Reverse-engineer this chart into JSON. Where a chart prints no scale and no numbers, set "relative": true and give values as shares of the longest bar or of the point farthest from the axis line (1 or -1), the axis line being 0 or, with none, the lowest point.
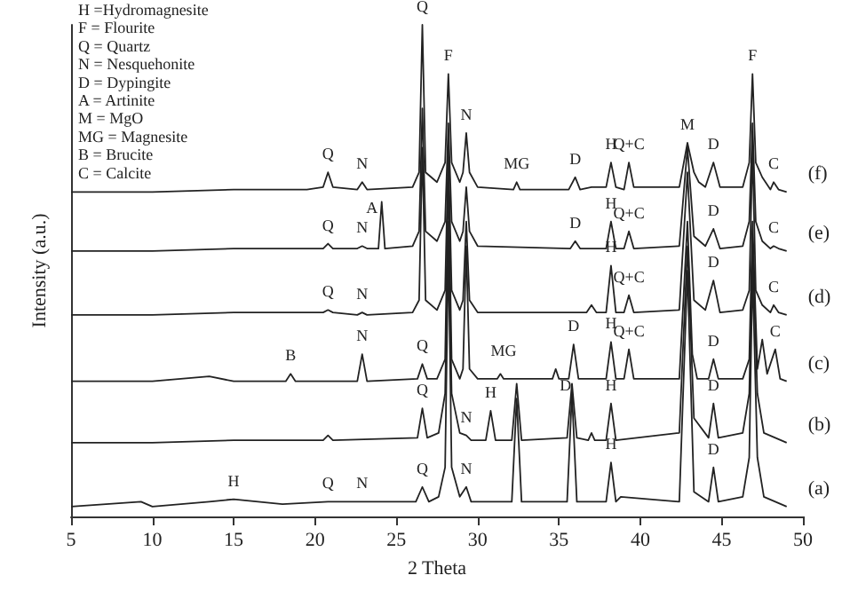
{
  "chart_data": {
    "type": "line",
    "relative": true,
    "xlabel": "2 Theta",
    "ylabel": "Intensity (a.u.)",
    "xlim": [
      5,
      50
    ],
    "xticks": [
      5,
      10,
      15,
      20,
      25,
      30,
      35,
      40,
      45,
      50
    ],
    "tick_labels": "x",
    "grid": false,
    "legend": false,
    "marker": "none",
    "line_style": "solid",
    "series": [
      {
        "name": "(f)",
        "color": "#222222",
        "x": [
          5,
          10,
          15,
          19.5,
          20.5,
          20.8,
          21.1,
          22.6,
          22.9,
          23.2,
          26,
          26.4,
          26.6,
          26.8,
          27.5,
          28,
          28.2,
          28.4,
          28.9,
          29.1,
          29.3,
          29.5,
          30,
          32.2,
          32.4,
          32.6,
          35.6,
          36,
          36.3,
          37,
          37.9,
          38.2,
          38.5,
          39,
          39.3,
          39.6,
          42.4,
          42.9,
          43.3,
          43.6,
          44,
          44.5,
          44.9,
          46.3,
          46.7,
          46.9,
          47.1,
          47.5,
          48,
          48.2,
          48.5,
          49
        ],
        "values": [
          0.66,
          0.66,
          0.665,
          0.665,
          0.67,
          0.7,
          0.67,
          0.665,
          0.68,
          0.665,
          0.67,
          0.7,
          1,
          0.7,
          0.68,
          0.72,
          0.9,
          0.72,
          0.68,
          0.7,
          0.78,
          0.7,
          0.67,
          0.665,
          0.68,
          0.665,
          0.665,
          0.69,
          0.665,
          0.67,
          0.67,
          0.72,
          0.67,
          0.665,
          0.72,
          0.67,
          0.67,
          0.76,
          0.7,
          0.68,
          0.67,
          0.72,
          0.67,
          0.67,
          0.72,
          0.9,
          0.72,
          0.69,
          0.665,
          0.68,
          0.665,
          0.66
        ]
      },
      {
        "name": "(e)",
        "color": "#222222",
        "x": [
          5,
          10,
          15,
          20.5,
          20.8,
          21.1,
          22.6,
          22.9,
          23.2,
          23.9,
          24.1,
          24.3,
          26,
          26.4,
          26.6,
          26.8,
          27.5,
          28,
          28.2,
          28.4,
          28.9,
          29.1,
          29.3,
          29.5,
          30,
          35.7,
          36,
          36.3,
          37.9,
          38.2,
          38.5,
          39,
          39.3,
          39.6,
          42.4,
          42.9,
          43.3,
          44,
          44.5,
          44.9,
          46.3,
          46.7,
          46.9,
          47.1,
          47.5,
          48,
          48.2,
          48.5,
          49
        ],
        "values": [
          0.54,
          0.54,
          0.545,
          0.545,
          0.555,
          0.545,
          0.545,
          0.55,
          0.545,
          0.545,
          0.64,
          0.545,
          0.55,
          0.58,
          0.83,
          0.58,
          0.56,
          0.6,
          0.8,
          0.6,
          0.56,
          0.58,
          0.67,
          0.58,
          0.55,
          0.545,
          0.56,
          0.545,
          0.545,
          0.6,
          0.545,
          0.545,
          0.58,
          0.545,
          0.55,
          0.75,
          0.57,
          0.55,
          0.585,
          0.545,
          0.55,
          0.6,
          0.8,
          0.6,
          0.56,
          0.545,
          0.55,
          0.545,
          0.54
        ]
      },
      {
        "name": "(d)",
        "color": "#222222",
        "x": [
          5,
          10,
          15,
          20.5,
          20.8,
          21.1,
          22.6,
          22.9,
          23.2,
          26,
          26.4,
          26.6,
          26.8,
          27.5,
          28,
          28.2,
          28.4,
          28.9,
          29.1,
          29.3,
          29.5,
          30,
          36.7,
          37,
          37.3,
          37.9,
          38.2,
          38.5,
          39,
          39.3,
          39.6,
          42.4,
          42.9,
          43.3,
          44,
          44.5,
          44.9,
          46.3,
          46.7,
          46.9,
          47.1,
          47.5,
          48,
          48.2,
          48.5,
          49
        ],
        "values": [
          0.41,
          0.41,
          0.415,
          0.415,
          0.42,
          0.415,
          0.41,
          0.415,
          0.41,
          0.415,
          0.44,
          0.75,
          0.44,
          0.42,
          0.46,
          0.75,
          0.46,
          0.42,
          0.44,
          0.6,
          0.44,
          0.415,
          0.415,
          0.43,
          0.415,
          0.415,
          0.51,
          0.415,
          0.415,
          0.45,
          0.415,
          0.42,
          0.7,
          0.44,
          0.42,
          0.48,
          0.415,
          0.42,
          0.46,
          0.75,
          0.46,
          0.43,
          0.415,
          0.43,
          0.415,
          0.41
        ]
      },
      {
        "name": "(c)",
        "color": "#222222",
        "x": [
          5,
          10,
          13.5,
          15,
          18.2,
          18.5,
          18.8,
          22.6,
          22.9,
          23.2,
          26.3,
          26.6,
          26.9,
          27.5,
          28,
          28.2,
          28.4,
          28.9,
          29.1,
          29.3,
          29.5,
          30,
          31.2,
          31.4,
          31.6,
          34.6,
          34.8,
          35,
          35.6,
          35.9,
          36.2,
          37.9,
          38.2,
          38.5,
          39,
          39.3,
          39.6,
          42.4,
          42.9,
          43.2,
          43.5,
          44.2,
          44.5,
          44.8,
          46.3,
          46.7,
          46.9,
          47.2,
          47.5,
          47.8,
          48.3,
          48.6,
          49
        ],
        "values": [
          0.275,
          0.275,
          0.285,
          0.275,
          0.275,
          0.29,
          0.275,
          0.275,
          0.33,
          0.275,
          0.28,
          0.31,
          0.28,
          0.28,
          0.32,
          0.7,
          0.32,
          0.28,
          0.3,
          0.55,
          0.3,
          0.28,
          0.28,
          0.29,
          0.28,
          0.28,
          0.3,
          0.28,
          0.28,
          0.35,
          0.28,
          0.28,
          0.355,
          0.28,
          0.28,
          0.34,
          0.28,
          0.28,
          0.6,
          0.33,
          0.28,
          0.28,
          0.32,
          0.28,
          0.28,
          0.32,
          0.6,
          0.3,
          0.36,
          0.29,
          0.34,
          0.28,
          0.275
        ]
      },
      {
        "name": "(b)",
        "color": "#222222",
        "x": [
          5,
          10,
          15,
          20.5,
          20.8,
          21.1,
          26.3,
          26.6,
          26.9,
          27.6,
          28,
          28.2,
          28.4,
          28.9,
          29.3,
          29.6,
          30.5,
          30.8,
          31.1,
          32.1,
          32.4,
          32.7,
          35.5,
          35.8,
          36.1,
          36.8,
          37,
          37.2,
          37.9,
          38.2,
          38.5,
          42.4,
          42.9,
          43.3,
          44.2,
          44.5,
          44.8,
          46.3,
          46.7,
          46.9,
          47.2,
          47.6,
          49
        ],
        "values": [
          0.15,
          0.15,
          0.155,
          0.155,
          0.165,
          0.155,
          0.16,
          0.22,
          0.16,
          0.17,
          0.25,
          0.6,
          0.25,
          0.17,
          0.165,
          0.155,
          0.155,
          0.215,
          0.155,
          0.155,
          0.27,
          0.155,
          0.16,
          0.27,
          0.16,
          0.155,
          0.17,
          0.155,
          0.155,
          0.23,
          0.155,
          0.17,
          0.55,
          0.2,
          0.16,
          0.23,
          0.16,
          0.17,
          0.25,
          0.55,
          0.25,
          0.17,
          0.15
        ]
      },
      {
        "name": "(a)",
        "color": "#222222",
        "x": [
          5,
          9.3,
          10,
          13.5,
          15,
          18,
          20.8,
          22.9,
          26.2,
          26.6,
          27,
          27.6,
          28,
          28.2,
          28.4,
          28.9,
          29.3,
          29.6,
          30.8,
          32.1,
          32.4,
          32.7,
          35.5,
          35.8,
          36.1,
          37.9,
          38.2,
          38.5,
          38.8,
          42.4,
          42.9,
          43.3,
          44.2,
          44.5,
          44.8,
          46.3,
          46.7,
          46.9,
          47.2,
          47.6,
          49
        ],
        "values": [
          0.02,
          0.03,
          0.02,
          0.03,
          0.035,
          0.025,
          0.03,
          0.03,
          0.03,
          0.06,
          0.03,
          0.04,
          0.1,
          0.55,
          0.1,
          0.04,
          0.06,
          0.03,
          0.03,
          0.03,
          0.24,
          0.03,
          0.03,
          0.25,
          0.03,
          0.03,
          0.11,
          0.03,
          0.04,
          0.03,
          0.5,
          0.05,
          0.03,
          0.1,
          0.03,
          0.04,
          0.12,
          0.5,
          0.12,
          0.04,
          0.02
        ]
      }
    ],
    "annotations": [
      "H =Hydromagnesite",
      "F = Flourite",
      "Q = Quartz",
      "N = Nesquehonite",
      "D = Dypingite",
      "A = Artinite",
      "M = MgO",
      "MG = Magnesite",
      "B = Brucite",
      "C = Calcite",
      {
        "text": "Q",
        "x": 20.8,
        "y": 0.7
      },
      {
        "text": "N",
        "x": 22.9,
        "y": 0.68
      },
      {
        "text": "Q",
        "x": 26.6,
        "y": 1
      },
      {
        "text": "F",
        "x": 28.2,
        "y": 0.9
      },
      {
        "text": "N",
        "x": 29.3,
        "y": 0.78
      },
      {
        "text": "MG",
        "x": 32.4,
        "y": 0.68
      },
      {
        "text": "D",
        "x": 36,
        "y": 0.69
      },
      {
        "text": "H",
        "x": 38.2,
        "y": 0.72
      },
      {
        "text": "Q+C",
        "x": 39.3,
        "y": 0.72
      },
      {
        "text": "M",
        "x": 42.9,
        "y": 0.76
      },
      {
        "text": "D",
        "x": 44.5,
        "y": 0.72
      },
      {
        "text": "F",
        "x": 46.9,
        "y": 0.9
      },
      {
        "text": "C",
        "x": 48.2,
        "y": 0.68
      },
      {
        "text": "Q",
        "x": 20.8,
        "y": 0.555
      },
      {
        "text": "N",
        "x": 22.9,
        "y": 0.55
      },
      {
        "text": "A",
        "x": 23.5,
        "y": 0.59
      },
      {
        "text": "D",
        "x": 36,
        "y": 0.56
      },
      {
        "text": "H",
        "x": 38.2,
        "y": 0.6
      },
      {
        "text": "Q+C",
        "x": 39.3,
        "y": 0.58
      },
      {
        "text": "D",
        "x": 44.5,
        "y": 0.585
      },
      {
        "text": "C",
        "x": 48.2,
        "y": 0.55
      },
      {
        "text": "Q",
        "x": 20.8,
        "y": 0.42
      },
      {
        "text": "N",
        "x": 22.9,
        "y": 0.415
      },
      {
        "text": "H",
        "x": 38.2,
        "y": 0.51
      },
      {
        "text": "Q+C",
        "x": 39.3,
        "y": 0.45
      },
      {
        "text": "D",
        "x": 44.5,
        "y": 0.48
      },
      {
        "text": "C",
        "x": 48.2,
        "y": 0.43
      },
      {
        "text": "B",
        "x": 18.5,
        "y": 0.29
      },
      {
        "text": "N",
        "x": 22.9,
        "y": 0.33
      },
      {
        "text": "Q",
        "x": 26.6,
        "y": 0.31
      },
      {
        "text": "MG",
        "x": 31.6,
        "y": 0.3
      },
      {
        "text": "D",
        "x": 35.9,
        "y": 0.35
      },
      {
        "text": "H",
        "x": 38.2,
        "y": 0.355
      },
      {
        "text": "Q+C",
        "x": 39.3,
        "y": 0.34
      },
      {
        "text": "D",
        "x": 44.5,
        "y": 0.32
      },
      {
        "text": "C",
        "x": 48.3,
        "y": 0.34
      },
      {
        "text": "Q",
        "x": 26.6,
        "y": 0.22
      },
      {
        "text": "N",
        "x": 29.3,
        "y": 0.165
      },
      {
        "text": "H",
        "x": 30.8,
        "y": 0.215
      },
      {
        "text": "D",
        "x": 35.4,
        "y": 0.23
      },
      {
        "text": "H",
        "x": 38.2,
        "y": 0.23
      },
      {
        "text": "D",
        "x": 44.5,
        "y": 0.23
      },
      {
        "text": "H",
        "x": 15,
        "y": 0.035
      },
      {
        "text": "Q",
        "x": 20.8,
        "y": 0.03
      },
      {
        "text": "N",
        "x": 22.9,
        "y": 0.03
      },
      {
        "text": "Q",
        "x": 26.6,
        "y": 0.06
      },
      {
        "text": "N",
        "x": 29.3,
        "y": 0.06
      },
      {
        "text": "H",
        "x": 38.2,
        "y": 0.11
      },
      {
        "text": "D",
        "x": 44.5,
        "y": 0.1
      }
    ]
  }
}
